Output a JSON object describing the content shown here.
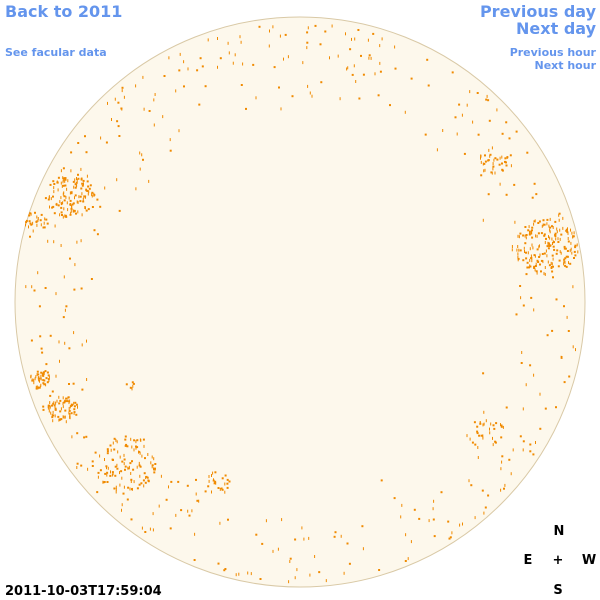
{
  "header": {
    "back": "Back to 2011",
    "facular": "See facular data",
    "previous_day": "Previous day",
    "next_day": "Next day",
    "previous_hour": "Previous hour",
    "next_hour": "Next hour"
  },
  "timestamp": "2011-10-03T17:59:04",
  "compass": {
    "north": "N",
    "east": "E",
    "center": "+",
    "west": "W",
    "south": "S"
  }
}
